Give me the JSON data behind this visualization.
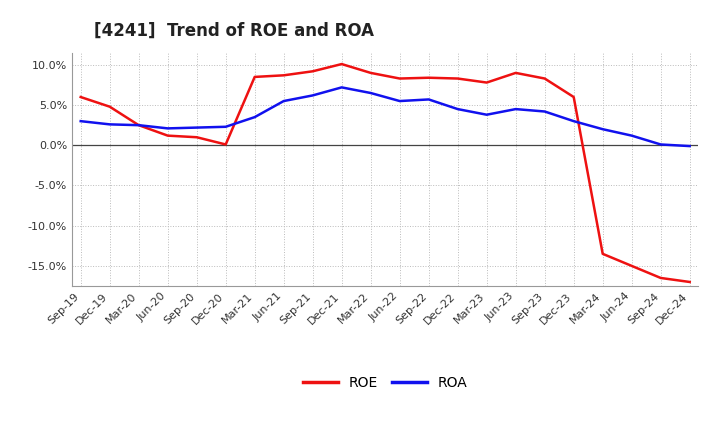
{
  "title": "[4241]  Trend of ROE and ROA",
  "labels": [
    "Sep-19",
    "Dec-19",
    "Mar-20",
    "Jun-20",
    "Sep-20",
    "Dec-20",
    "Mar-21",
    "Jun-21",
    "Sep-21",
    "Dec-21",
    "Mar-22",
    "Jun-22",
    "Sep-22",
    "Dec-22",
    "Mar-23",
    "Jun-23",
    "Sep-23",
    "Dec-23",
    "Mar-24",
    "Jun-24",
    "Sep-24",
    "Dec-24"
  ],
  "ROE": [
    6.0,
    4.8,
    2.5,
    1.2,
    1.0,
    0.1,
    8.5,
    8.7,
    9.2,
    10.1,
    9.0,
    8.3,
    8.4,
    8.3,
    7.8,
    9.0,
    8.3,
    6.0,
    -13.5,
    -15.0,
    -16.5,
    -17.0
  ],
  "ROA": [
    3.0,
    2.6,
    2.5,
    2.1,
    2.2,
    2.3,
    3.5,
    5.5,
    6.2,
    7.2,
    6.5,
    5.5,
    5.7,
    4.5,
    3.8,
    4.5,
    4.2,
    3.0,
    2.0,
    1.2,
    0.1,
    -0.1
  ],
  "roe_color": "#EE1111",
  "roa_color": "#1111EE",
  "bg_color": "#FFFFFF",
  "plot_bg_color": "#FFFFFF",
  "grid_color": "#BBBBBB",
  "ylim": [
    -17.5,
    11.5
  ],
  "yticks": [
    -15.0,
    -10.0,
    -5.0,
    0.0,
    5.0,
    10.0
  ],
  "line_width": 1.8,
  "title_fontsize": 12,
  "tick_fontsize": 8
}
